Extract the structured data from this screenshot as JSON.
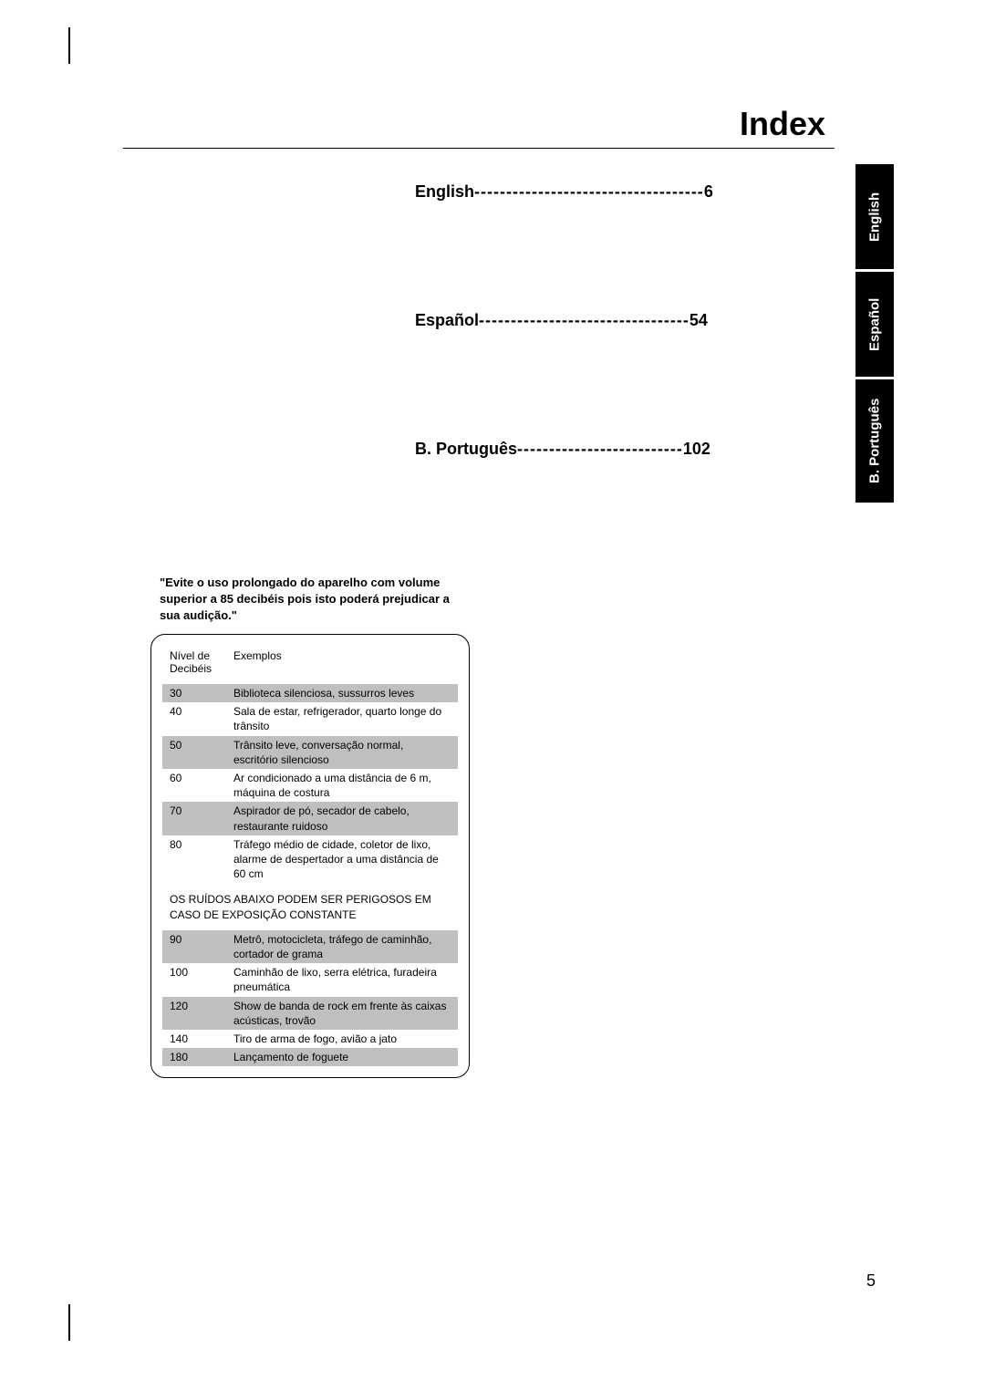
{
  "pageTitle": "Index",
  "indexEntries": [
    {
      "label": "English",
      "dashes": "------------------------------------",
      "page": " 6"
    },
    {
      "label": "Español ",
      "dashes": "---------------------------------",
      "page": " 54"
    },
    {
      "label": "B. Português ",
      "dashes": "--------------------------",
      "page": " 102"
    }
  ],
  "sideTabs": {
    "english": "English",
    "espanol": "Español",
    "portugues": "B. Português"
  },
  "warningText": "\"Evite o uso prolongado do aparelho com volume superior a 85 decibéis pois isto poderá prejudicar a sua audição.\"",
  "tableHeader": {
    "col1": "Nível de Decibéis",
    "col2": "Exemplos"
  },
  "tableRowsTop": [
    {
      "db": "30",
      "ex": "Biblioteca silenciosa, sussurros leves",
      "shaded": true
    },
    {
      "db": "40",
      "ex": "Sala de estar, refrigerador, quarto longe do trânsito",
      "shaded": false
    },
    {
      "db": "50",
      "ex": "Trânsito leve, conversação normal, escritório silencioso",
      "shaded": true
    },
    {
      "db": "60",
      "ex": "Ar condicionado a uma distância de 6 m, máquina de costura",
      "shaded": false
    },
    {
      "db": "70",
      "ex": "Aspirador de pó, secador de cabelo, restaurante ruidoso",
      "shaded": true
    },
    {
      "db": "80",
      "ex": "Tráfego médio de cidade, coletor de lixo, alarme de despertador a uma distância de 60 cm",
      "shaded": false
    }
  ],
  "dividerText": "OS RUÍDOS ABAIXO PODEM SER PERIGOSOS EM CASO DE EXPOSIÇÃO CONSTANTE",
  "tableRowsBottom": [
    {
      "db": "90",
      "ex": "Metrô, motocicleta, tráfego de caminhão, cortador de grama",
      "shaded": true
    },
    {
      "db": "100",
      "ex": "Caminhão de lixo, serra elétrica, furadeira pneumática",
      "shaded": false
    },
    {
      "db": "120",
      "ex": "Show de banda de rock em frente às caixas acústicas, trovão",
      "shaded": true
    },
    {
      "db": "140",
      "ex": "Tiro de arma de fogo, avião a jato",
      "shaded": false
    },
    {
      "db": "180",
      "ex": "Lançamento de foguete",
      "shaded": true
    }
  ],
  "pageNumber": "5",
  "colors": {
    "background": "#ffffff",
    "text": "#000000",
    "tabBg": "#000000",
    "tabText": "#ffffff",
    "shadedRow": "#bfbfbf"
  }
}
